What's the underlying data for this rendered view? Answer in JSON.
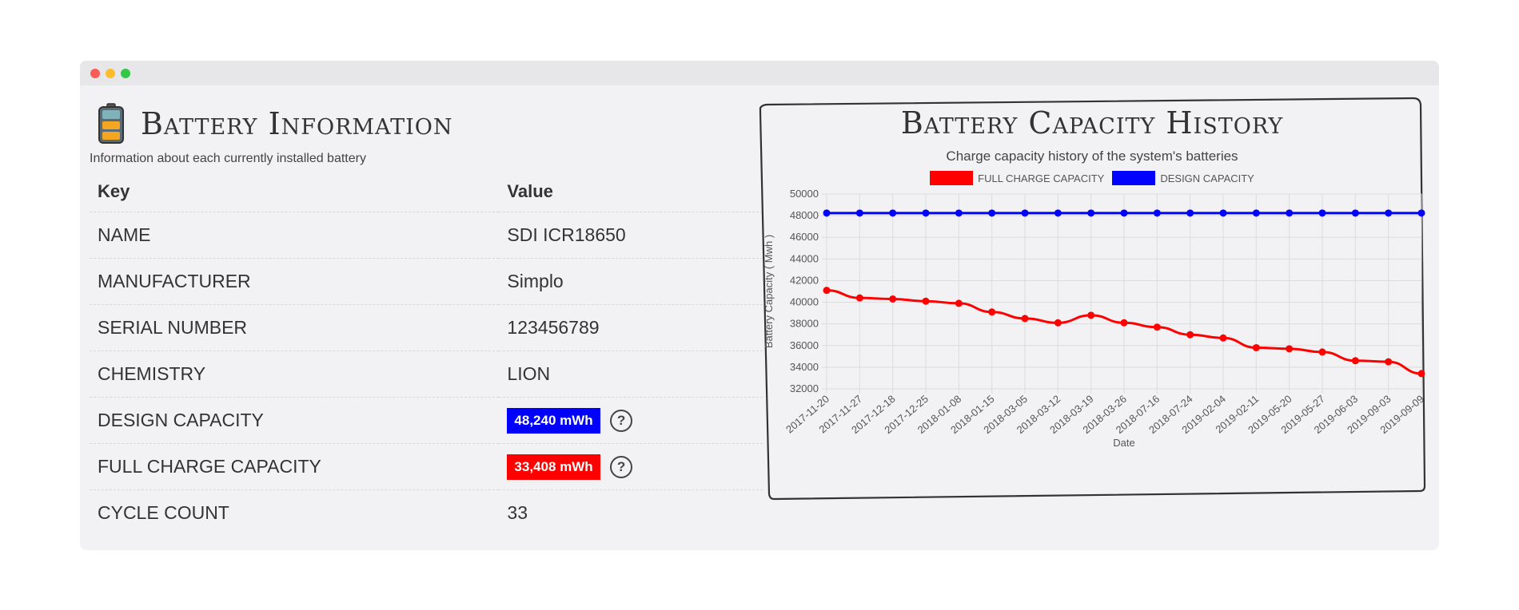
{
  "window": {
    "controls": [
      "close",
      "minimize",
      "zoom"
    ]
  },
  "info": {
    "icon": "battery-icon",
    "title": "Battery Information",
    "subtitle": "Information about each currently installed battery",
    "headers": {
      "key": "Key",
      "value": "Value"
    },
    "rows": [
      {
        "key": "NAME",
        "value": "SDI ICR18650"
      },
      {
        "key": "MANUFACTURER",
        "value": "Simplo"
      },
      {
        "key": "SERIAL NUMBER",
        "value": "123456789"
      },
      {
        "key": "CHEMISTRY",
        "value": "LION"
      },
      {
        "key": "DESIGN CAPACITY",
        "value": "48,240 mWh",
        "badge_color": "#0000ff",
        "help": "?"
      },
      {
        "key": "FULL CHARGE CAPACITY",
        "value": "33,408 mWh",
        "badge_color": "#ff0000",
        "help": "?"
      },
      {
        "key": "CYCLE COUNT",
        "value": "33"
      }
    ]
  },
  "chart_data": {
    "type": "line",
    "title": "Battery Capacity History",
    "subtitle": "Charge capacity history of the system's batteries",
    "xlabel": "Date",
    "ylabel": "Battery Capacity ( Mwh )",
    "ylim": [
      32000,
      50000
    ],
    "yticks": [
      32000,
      34000,
      36000,
      38000,
      40000,
      42000,
      44000,
      46000,
      48000,
      50000
    ],
    "grid": true,
    "legend": "top-center",
    "categories": [
      "2017-11-20",
      "2017-11-27",
      "2017-12-18",
      "2017-12-25",
      "2018-01-08",
      "2018-01-15",
      "2018-03-05",
      "2018-03-12",
      "2018-03-19",
      "2018-03-26",
      "2018-07-16",
      "2018-07-24",
      "2019-02-04",
      "2019-02-11",
      "2019-05-20",
      "2019-05-27",
      "2019-06-03",
      "2019-09-03",
      "2019-09-09"
    ],
    "series": [
      {
        "name": "FULL CHARGE CAPACITY",
        "color": "#ff0000",
        "values": [
          41100,
          40400,
          40300,
          40100,
          39900,
          39100,
          38500,
          38100,
          38800,
          38100,
          37700,
          37000,
          36700,
          35800,
          35700,
          35400,
          34600,
          34500,
          33408
        ]
      },
      {
        "name": "DESIGN CAPACITY",
        "color": "#0000ff",
        "values": [
          48240,
          48240,
          48240,
          48240,
          48240,
          48240,
          48240,
          48240,
          48240,
          48240,
          48240,
          48240,
          48240,
          48240,
          48240,
          48240,
          48240,
          48240,
          48240
        ]
      }
    ]
  }
}
